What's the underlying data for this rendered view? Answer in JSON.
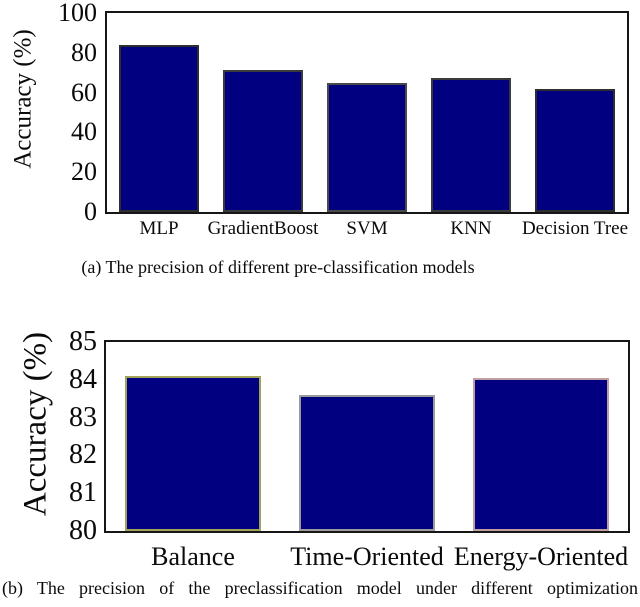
{
  "colors": {
    "bar_fill": "#000080",
    "axis_frame": "#161616",
    "edge_chart_a": "#2e2e2e",
    "edge_balance": "#a2a258",
    "edge_time_oriented": "#9b9b9b",
    "edge_energy_oriented": "#bfa0a0"
  },
  "chart_data": [
    {
      "type": "bar",
      "title": "",
      "ylabel": "Accuracy (%)",
      "xlabel": "",
      "categories": [
        "MLP",
        "GradientBoost",
        "SVM",
        "KNN",
        "Decision Tree"
      ],
      "values": [
        84,
        71.5,
        65,
        67.5,
        62
      ],
      "ylim": [
        0,
        100
      ],
      "yticks": [
        0,
        20,
        40,
        60,
        80,
        100
      ],
      "grid": false,
      "legend": "none",
      "bar_fill": "#000080",
      "bar_edge": [
        "#2e2e2e",
        "#3a3a3a",
        "#4a4a4a",
        "#3a3a3a",
        "#2e2e2e"
      ],
      "caption": "(a) The precision of different pre-classification models"
    },
    {
      "type": "bar",
      "title": "",
      "ylabel": "Accuracy (%)",
      "xlabel": "",
      "categories": [
        "Balance",
        "Time-Oriented",
        "Energy-Oriented"
      ],
      "values": [
        84.1,
        83.6,
        84.05
      ],
      "ylim": [
        80,
        85
      ],
      "yticks": [
        80,
        81,
        82,
        83,
        84,
        85
      ],
      "grid": false,
      "legend": "none",
      "bar_fill": "#000080",
      "bar_edge": [
        "#a2a258",
        "#9b9b9b",
        "#bfa0a0"
      ],
      "caption": "(b) The precision of the preclassification model under different optimization"
    }
  ]
}
